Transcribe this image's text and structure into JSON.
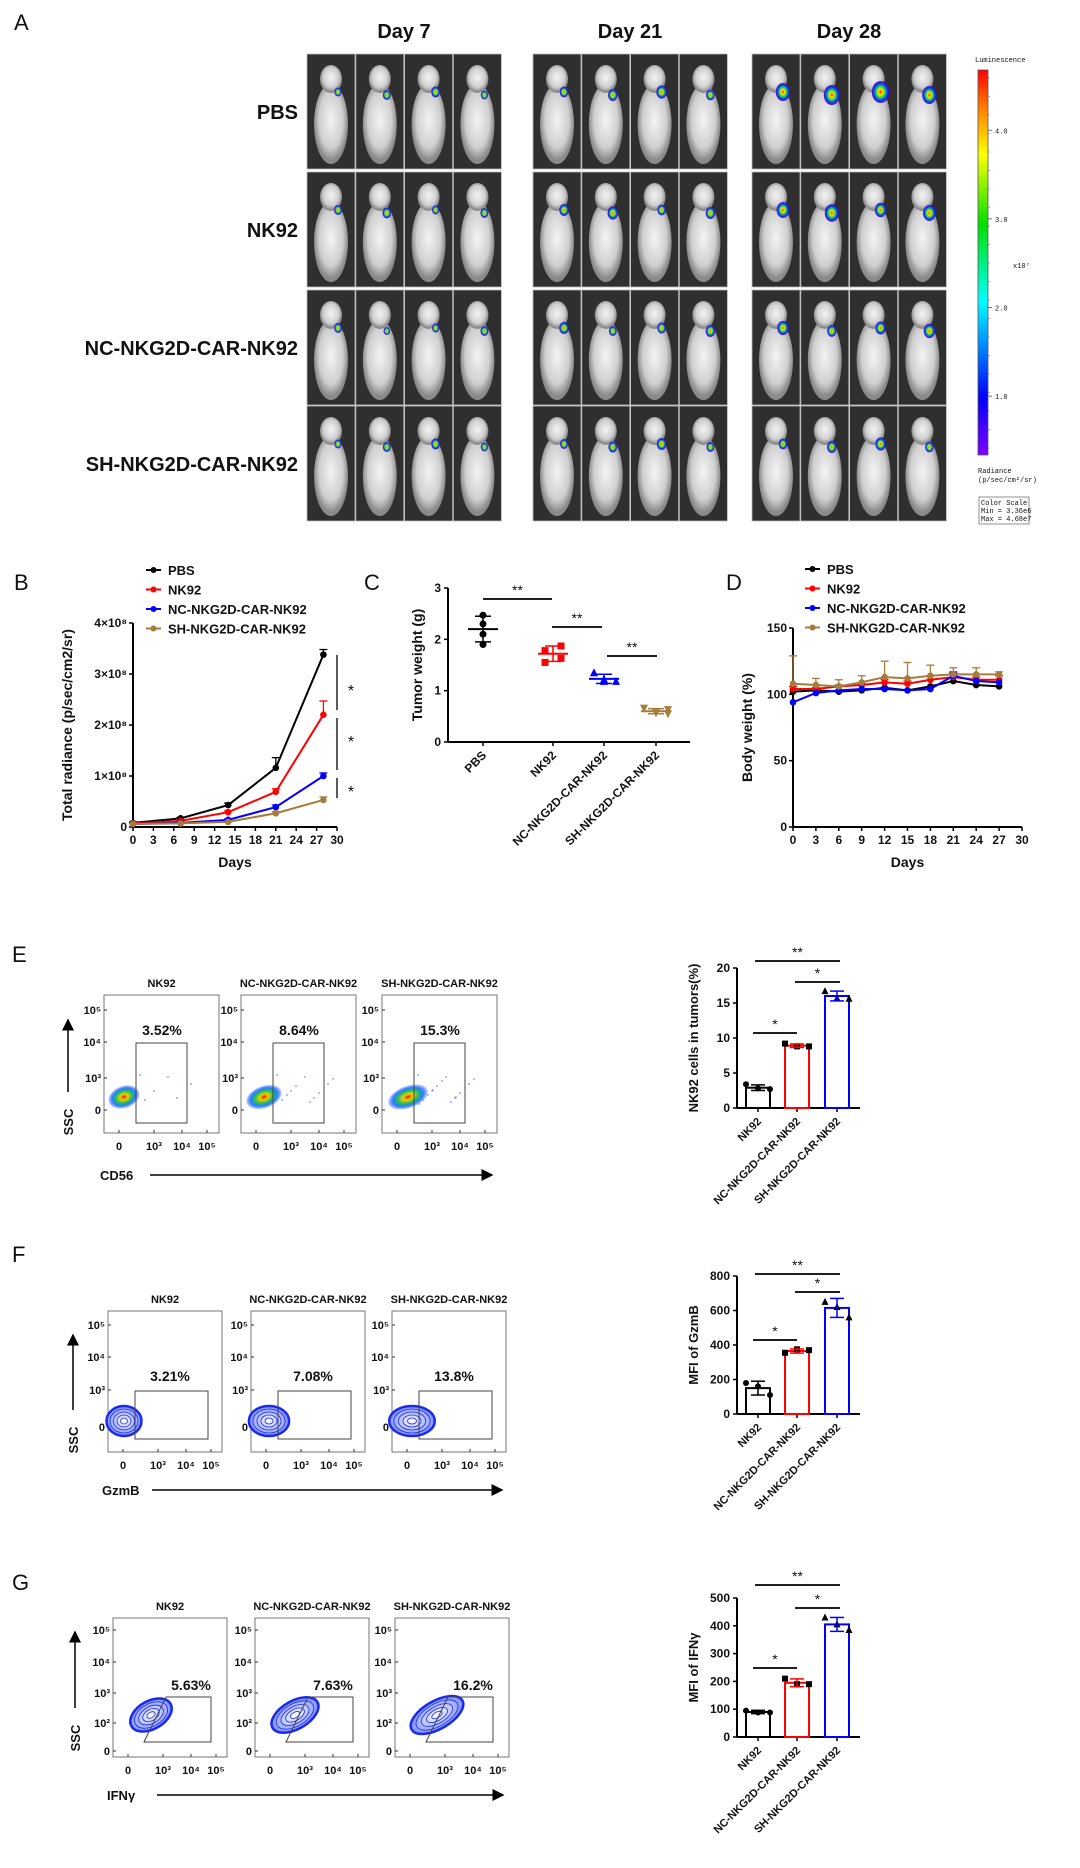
{
  "panel_labels": {
    "a": "A",
    "b": "B",
    "c": "C",
    "d": "D",
    "e": "E",
    "f": "F",
    "g": "G"
  },
  "panel_a": {
    "days": [
      "Day 7",
      "Day 21",
      "Day 28"
    ],
    "groups": [
      "PBS",
      "NK92",
      "NC-NKG2D-CAR-NK92",
      "SH-NKG2D-CAR-NK92"
    ],
    "colorbar": {
      "title": "Luminescence",
      "ticks": [
        "4.0",
        "3.0",
        "2.0",
        "1.0"
      ],
      "tick_values": [
        4.0,
        3.0,
        2.0,
        1.0
      ],
      "range": [
        0.336,
        4.68
      ],
      "multiplier": "x10⁷",
      "unit_line1": "Radiance",
      "unit_line2": "(p/sec/cm²/sr)",
      "scale_title": "Color Scale",
      "min": "Min = 3.36e6",
      "max": "Max = 4.68e7"
    }
  },
  "colors": {
    "PBS": "#000000",
    "NK92": "#ff0000",
    "NC": "#0000ff",
    "SH": "#a67c3d"
  },
  "chart_data": [
    {
      "id": "B",
      "type": "line",
      "x": [
        0,
        7,
        14,
        21,
        28
      ],
      "xlabel": "Days",
      "ylabel": "Total radiance (p/sec/cm2/sr)",
      "xlim": [
        0,
        30
      ],
      "ylim": [
        0,
        400000000
      ],
      "xticks": [
        "0",
        "3",
        "6",
        "9",
        "12",
        "15",
        "18",
        "21",
        "24",
        "27",
        "30"
      ],
      "yticks": [
        0,
        100000000,
        200000000,
        300000000,
        400000000
      ],
      "ytick_labels": [
        "0",
        "1×10⁸",
        "2×10⁸",
        "3×10⁸",
        "4×10⁸"
      ],
      "legend": "top-left",
      "series": [
        {
          "name": "PBS",
          "color": "#000000",
          "values": [
            8000000,
            17000000,
            43000000,
            116000000,
            338000000
          ],
          "err": [
            2000000,
            2000000,
            4000000,
            20000000,
            10000000
          ]
        },
        {
          "name": "NK92",
          "color": "#ff0000",
          "values": [
            7000000,
            12000000,
            29000000,
            69000000,
            220000000
          ],
          "err": [
            1000000,
            2000000,
            3000000,
            6000000,
            27000000
          ]
        },
        {
          "name": "NC-NKG2D-CAR-NK92",
          "color": "#0000ff",
          "values": [
            6000000,
            8000000,
            14000000,
            39000000,
            100000000
          ],
          "err": [
            1000000,
            1000000,
            2000000,
            4000000,
            6000000
          ]
        },
        {
          "name": "SH-NKG2D-CAR-NK92",
          "color": "#a67c3d",
          "values": [
            6000000,
            7000000,
            10000000,
            27000000,
            53000000
          ],
          "err": [
            1000000,
            1000000,
            1000000,
            3000000,
            6000000
          ]
        }
      ],
      "significance": [
        "*",
        "*",
        "*"
      ]
    },
    {
      "id": "C",
      "type": "scatter",
      "categories": [
        "PBS",
        "NK92",
        "NC-NKG2D-CAR-NK92",
        "SH-NKG2D-CAR-NK92"
      ],
      "ylabel": "Tumor weight (g)",
      "ylim": [
        0,
        3
      ],
      "yticks": [
        "0",
        "1",
        "2",
        "3"
      ],
      "series": [
        {
          "color": "#000000",
          "marker": "circle",
          "points": [
            2.47,
            2.3,
            2.1,
            1.9
          ],
          "mean": 2.2,
          "sd": 0.25
        },
        {
          "color": "#ff0000",
          "marker": "square",
          "points": [
            1.87,
            1.78,
            1.63,
            1.55
          ],
          "mean": 1.72,
          "sd": 0.15
        },
        {
          "color": "#0000ff",
          "marker": "triangle",
          "points": [
            1.35,
            1.22,
            1.18,
            1.18
          ],
          "mean": 1.23,
          "sd": 0.09
        },
        {
          "color": "#a67c3d",
          "marker": "triangle-down",
          "points": [
            0.66,
            0.63,
            0.57,
            0.55
          ],
          "mean": 0.6,
          "sd": 0.05
        }
      ],
      "significance": [
        "**",
        "**",
        "**"
      ]
    },
    {
      "id": "D",
      "type": "line",
      "x": [
        0,
        3,
        6,
        9,
        12,
        15,
        18,
        21,
        24,
        27
      ],
      "xlabel": "Days",
      "ylabel": "Body weight (%)",
      "xlim": [
        0,
        30
      ],
      "ylim": [
        0,
        150
      ],
      "xticks": [
        "0",
        "3",
        "6",
        "9",
        "12",
        "15",
        "18",
        "21",
        "24",
        "27",
        "30"
      ],
      "yticks": [
        0,
        50,
        100,
        150
      ],
      "ytick_labels": [
        "0",
        "50",
        "100",
        "150"
      ],
      "legend": "top",
      "series": [
        {
          "name": "PBS",
          "color": "#000000",
          "values": [
            102,
            103,
            102,
            103,
            105,
            103,
            106,
            110,
            107,
            106
          ],
          "err": [
            0,
            0,
            0,
            0,
            0,
            0,
            0,
            0,
            0,
            0
          ]
        },
        {
          "name": "NK92",
          "color": "#ff0000",
          "values": [
            104,
            104,
            106,
            107,
            109,
            108,
            111,
            113,
            111,
            111
          ],
          "err": [
            2,
            1,
            1,
            1,
            2,
            2,
            3,
            4,
            2,
            3
          ]
        },
        {
          "name": "NC-NKG2D-CAR-NK92",
          "color": "#0000ff",
          "values": [
            94,
            101,
            103,
            104,
            104,
            103,
            104,
            114,
            110,
            109
          ],
          "err": [
            0,
            0,
            0,
            0,
            0,
            0,
            0,
            2,
            0,
            0
          ]
        },
        {
          "name": "SH-NKG2D-CAR-NK92",
          "color": "#a67c3d",
          "values": [
            108,
            107,
            106,
            109,
            113,
            112,
            114,
            115,
            115,
            115
          ],
          "err": [
            21,
            5,
            5,
            5,
            12,
            12,
            8,
            5,
            5,
            2
          ]
        }
      ]
    },
    {
      "id": "E-bar",
      "type": "bar",
      "categories": [
        "NK92",
        "NC-NKG2D-CAR-NK92",
        "SH-NKG2D-CAR-NK92"
      ],
      "ylabel": "NK92 cells in tumors(%)",
      "ylim": [
        0,
        20
      ],
      "yticks": [
        "0",
        "5",
        "10",
        "15",
        "20"
      ],
      "series": [
        {
          "color": "#000000",
          "value": 2.9,
          "sd": 0.4,
          "points": [
            3.4,
            2.8,
            2.7
          ],
          "marker": "circle"
        },
        {
          "color": "#ff0000",
          "value": 8.9,
          "sd": 0.25,
          "points": [
            9.2,
            8.8,
            8.8
          ],
          "marker": "square"
        },
        {
          "color": "#0000ff",
          "value": 16.0,
          "sd": 0.7,
          "points": [
            16.7,
            15.7,
            15.6
          ],
          "marker": "triangle"
        }
      ],
      "significance": [
        "*",
        "*",
        "**"
      ]
    },
    {
      "id": "F-bar",
      "type": "bar",
      "categories": [
        "NK92",
        "NC-NKG2D-CAR-NK92",
        "SH-NKG2D-CAR-NK92"
      ],
      "ylabel": "MFI of GzmB",
      "ylim": [
        0,
        800
      ],
      "yticks": [
        "0",
        "200",
        "400",
        "600",
        "800"
      ],
      "series": [
        {
          "color": "#000000",
          "value": 150,
          "sd": 40,
          "points": [
            180,
            160,
            110
          ],
          "marker": "circle"
        },
        {
          "color": "#ff0000",
          "value": 365,
          "sd": 12,
          "points": [
            355,
            375,
            370
          ],
          "marker": "square"
        },
        {
          "color": "#0000ff",
          "value": 615,
          "sd": 55,
          "points": [
            650,
            620,
            560
          ],
          "marker": "triangle"
        }
      ],
      "significance": [
        "*",
        "*",
        "**"
      ]
    },
    {
      "id": "G-bar",
      "type": "bar",
      "categories": [
        "NK92",
        "NC-NKG2D-CAR-NK92",
        "SH-NKG2D-CAR-NK92"
      ],
      "ylabel": "MFI of IFNγ",
      "ylim": [
        0,
        500
      ],
      "yticks": [
        "0",
        "100",
        "200",
        "300",
        "400",
        "500"
      ],
      "series": [
        {
          "color": "#000000",
          "value": 90,
          "sd": 6,
          "points": [
            95,
            88,
            88
          ],
          "marker": "circle"
        },
        {
          "color": "#ff0000",
          "value": 195,
          "sd": 14,
          "points": [
            210,
            190,
            190
          ],
          "marker": "square"
        },
        {
          "color": "#0000ff",
          "value": 405,
          "sd": 25,
          "points": [
            430,
            405,
            385
          ],
          "marker": "triangle"
        }
      ],
      "significance": [
        "*",
        "*",
        "**"
      ]
    }
  ],
  "flow_e": {
    "x_axis": "CD56",
    "y_axis": "SSC",
    "y_ticks": [
      "10⁵",
      "10⁴",
      "10³",
      "0"
    ],
    "x_ticks": [
      "0",
      "10³",
      "10⁴",
      "10⁵"
    ],
    "plots": [
      {
        "title": "NK92",
        "percent": "3.52%"
      },
      {
        "title": "NC-NKG2D-CAR-NK92",
        "percent": "8.64%"
      },
      {
        "title": "SH-NKG2D-CAR-NK92",
        "percent": "15.3%"
      }
    ]
  },
  "flow_f": {
    "x_axis": "GzmB",
    "y_axis": "SSC",
    "y_ticks": [
      "10⁵",
      "10⁴",
      "10³",
      "0"
    ],
    "x_ticks": [
      "0",
      "10³",
      "10⁴",
      "10⁵"
    ],
    "plots": [
      {
        "title": "NK92",
        "percent": "3.21%"
      },
      {
        "title": "NC-NKG2D-CAR-NK92",
        "percent": "7.08%"
      },
      {
        "title": "SH-NKG2D-CAR-NK92",
        "percent": "13.8%"
      }
    ]
  },
  "flow_g": {
    "x_axis": "IFNγ",
    "y_axis": "SSC",
    "y_ticks": [
      "10⁵",
      "10⁴",
      "10³",
      "10²",
      "0"
    ],
    "x_ticks": [
      "0",
      "10³",
      "10⁴",
      "10⁵"
    ],
    "plots": [
      {
        "title": "NK92",
        "percent": "5.63%"
      },
      {
        "title": "NC-NKG2D-CAR-NK92",
        "percent": "7.63%"
      },
      {
        "title": "SH-NKG2D-CAR-NK92",
        "percent": "16.2%"
      }
    ]
  }
}
